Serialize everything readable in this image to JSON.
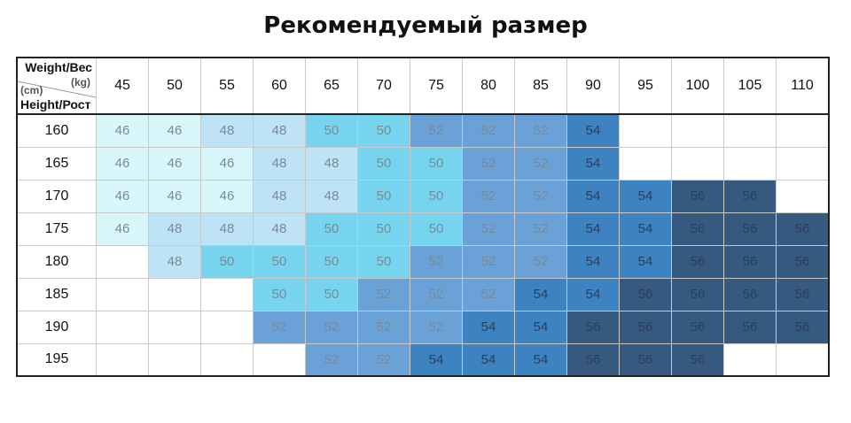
{
  "title": "Рекомендуемый размер",
  "header": {
    "weight_label": "Weight/Вес",
    "weight_unit": "(kg)",
    "height_unit": "(cm)",
    "height_label": "Height/Рост"
  },
  "colors": {
    "46": "#d9f6fb",
    "48": "#bfe3f6",
    "50": "#76d4ee",
    "52": "#6aa1d7",
    "54": "#3d82c1",
    "56": "#36597f",
    "empty": "#ffffff"
  },
  "chart_data": {
    "type": "table",
    "title": "Рекомендуемый размер",
    "xlabel": "Weight/Вес (kg)",
    "ylabel": "Height/Рост (cm)",
    "weights": [
      "45",
      "50",
      "55",
      "60",
      "65",
      "70",
      "75",
      "80",
      "85",
      "90",
      "95",
      "100",
      "105",
      "110"
    ],
    "heights": [
      "160",
      "165",
      "170",
      "175",
      "180",
      "185",
      "190",
      "195"
    ],
    "rows": [
      [
        "46",
        "46",
        "48",
        "48",
        "50",
        "50",
        "52",
        "52",
        "52",
        "54",
        "",
        "",
        "",
        ""
      ],
      [
        "46",
        "46",
        "46",
        "48",
        "48",
        "50",
        "50",
        "52",
        "52",
        "54",
        "",
        "",
        "",
        ""
      ],
      [
        "46",
        "46",
        "46",
        "48",
        "48",
        "50",
        "50",
        "52",
        "52",
        "54",
        "54",
        "56",
        "56",
        ""
      ],
      [
        "46",
        "48",
        "48",
        "48",
        "50",
        "50",
        "50",
        "52",
        "52",
        "54",
        "54",
        "56",
        "56",
        "56"
      ],
      [
        "",
        "48",
        "50",
        "50",
        "50",
        "50",
        "52",
        "52",
        "52",
        "54",
        "54",
        "56",
        "56",
        "56"
      ],
      [
        "",
        "",
        "",
        "50",
        "50",
        "52",
        "52",
        "52",
        "54",
        "54",
        "56",
        "56",
        "56",
        "56"
      ],
      [
        "",
        "",
        "",
        "52",
        "52",
        "52",
        "52",
        "54",
        "54",
        "56",
        "56",
        "56",
        "56",
        "56"
      ],
      [
        "",
        "",
        "",
        "",
        "52",
        "52",
        "54",
        "54",
        "54",
        "56",
        "56",
        "56",
        "",
        ""
      ]
    ]
  }
}
